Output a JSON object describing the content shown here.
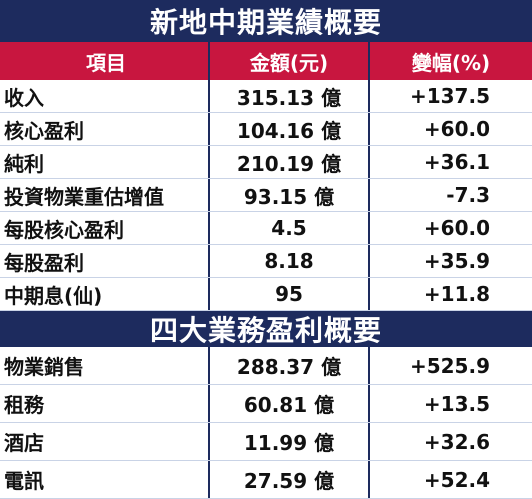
{
  "title": "新地中期業績概要",
  "header": [
    "項目",
    "金額(元)",
    "變幅(%)"
  ],
  "rows": [
    [
      "收入",
      "315.13 億",
      "+137.5"
    ],
    [
      "核心盈利",
      "104.16 億",
      "+60.0"
    ],
    [
      "純利",
      "210.19 億",
      "+36.1"
    ],
    [
      "投資物業重估增值",
      "93.15 億",
      "-7.3"
    ],
    [
      "每股核心盈利",
      "4.5",
      "+60.0"
    ],
    [
      "每股盈利",
      "8.18",
      "+35.9"
    ],
    [
      "中期息(仙)",
      "95",
      "+11.8"
    ]
  ],
  "title2": "四大業務盈利概要",
  "rows2": [
    [
      "物業銷售",
      "288.37 億",
      "+525.9"
    ],
    [
      "租務",
      "60.81 億",
      "+13.5"
    ],
    [
      "酒店",
      "11.99 億",
      "+32.6"
    ],
    [
      "電訊",
      "27.59 億",
      "+52.4"
    ]
  ]
}
